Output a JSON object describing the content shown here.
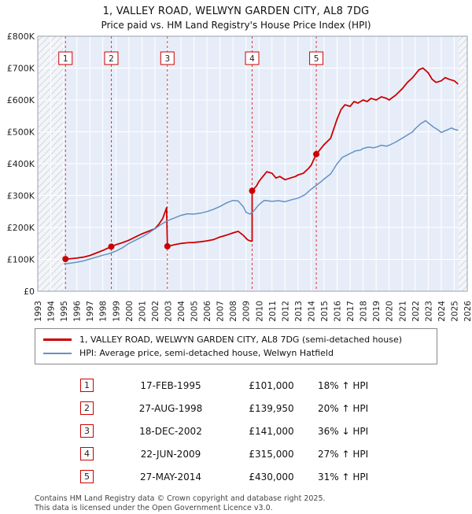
{
  "title": "1, VALLEY ROAD, WELWYN GARDEN CITY, AL8 7DG",
  "subtitle": "Price paid vs. HM Land Registry's House Price Index (HPI)",
  "chart_data": {
    "type": "line",
    "title": "Price paid vs. HM Land Registry's House Price Index (HPI)",
    "x_range": [
      1993,
      2026
    ],
    "y_range": [
      0,
      800000
    ],
    "grid": true,
    "legend_position": "below",
    "data_start": 1995.0,
    "data_end": 2025.33,
    "colors": {
      "property": "#cc0000",
      "hpi": "#6492c4",
      "band": "#e7edf8",
      "sale_line": "#dd3333",
      "hatch_line": "#c9cfda",
      "gridline": "#ffffff",
      "frame": "#98a0ac"
    },
    "x_ticks": [
      1993,
      1994,
      1995,
      1996,
      1997,
      1998,
      1999,
      2000,
      2001,
      2002,
      2003,
      2004,
      2005,
      2006,
      2007,
      2008,
      2009,
      2010,
      2011,
      2012,
      2013,
      2014,
      2015,
      2016,
      2017,
      2018,
      2019,
      2020,
      2021,
      2022,
      2023,
      2024,
      2025,
      2026
    ],
    "y_ticks": [
      {
        "value": 0,
        "label": "£0"
      },
      {
        "value": 100000,
        "label": "£100K"
      },
      {
        "value": 200000,
        "label": "£200K"
      },
      {
        "value": 300000,
        "label": "£300K"
      },
      {
        "value": 400000,
        "label": "£400K"
      },
      {
        "value": 500000,
        "label": "£500K"
      },
      {
        "value": 600000,
        "label": "£600K"
      },
      {
        "value": 700000,
        "label": "£700K"
      },
      {
        "value": 800000,
        "label": "£800K"
      }
    ],
    "sales": [
      {
        "n": "1",
        "x": 1995.13,
        "y": 101000
      },
      {
        "n": "2",
        "x": 1998.65,
        "y": 139950
      },
      {
        "n": "3",
        "x": 2002.96,
        "y": 141000
      },
      {
        "n": "4",
        "x": 2009.47,
        "y": 315000
      },
      {
        "n": "5",
        "x": 2014.4,
        "y": 430000
      }
    ],
    "series": [
      {
        "name": "1, VALLEY ROAD, WELWYN GARDEN CITY, AL8 7DG (semi-detached house)",
        "color": "#cc0000",
        "width": 1.8,
        "points": [
          [
            1995.13,
            101000
          ],
          [
            1995.5,
            102000
          ],
          [
            1996,
            104000
          ],
          [
            1996.5,
            107000
          ],
          [
            1997,
            112000
          ],
          [
            1997.5,
            120000
          ],
          [
            1998,
            128000
          ],
          [
            1998.65,
            139950
          ],
          [
            1999,
            146000
          ],
          [
            1999.5,
            152000
          ],
          [
            2000,
            160000
          ],
          [
            2000.5,
            170000
          ],
          [
            2001,
            180000
          ],
          [
            2001.5,
            188000
          ],
          [
            2002,
            196000
          ],
          [
            2002.3,
            210000
          ],
          [
            2002.6,
            228000
          ],
          [
            2002.9,
            262000
          ],
          [
            2002.96,
            141000
          ],
          [
            2003.2,
            143000
          ],
          [
            2003.5,
            146000
          ],
          [
            2004,
            150000
          ],
          [
            2004.5,
            152000
          ],
          [
            2005,
            153000
          ],
          [
            2005.5,
            155000
          ],
          [
            2006,
            158000
          ],
          [
            2006.5,
            162000
          ],
          [
            2007,
            170000
          ],
          [
            2007.5,
            176000
          ],
          [
            2008,
            183000
          ],
          [
            2008.4,
            188000
          ],
          [
            2008.8,
            175000
          ],
          [
            2009.1,
            162000
          ],
          [
            2009.3,
            158000
          ],
          [
            2009.47,
            157000
          ],
          [
            2009.47,
            315000
          ],
          [
            2009.8,
            330000
          ],
          [
            2010,
            345000
          ],
          [
            2010.3,
            360000
          ],
          [
            2010.6,
            375000
          ],
          [
            2011,
            370000
          ],
          [
            2011.3,
            355000
          ],
          [
            2011.6,
            360000
          ],
          [
            2012,
            350000
          ],
          [
            2012.4,
            355000
          ],
          [
            2012.8,
            360000
          ],
          [
            2013,
            365000
          ],
          [
            2013.4,
            370000
          ],
          [
            2013.8,
            385000
          ],
          [
            2014,
            395000
          ],
          [
            2014.4,
            430000
          ],
          [
            2014.8,
            450000
          ],
          [
            2015,
            460000
          ],
          [
            2015.5,
            480000
          ],
          [
            2016,
            540000
          ],
          [
            2016.3,
            570000
          ],
          [
            2016.6,
            585000
          ],
          [
            2017,
            580000
          ],
          [
            2017.3,
            595000
          ],
          [
            2017.6,
            590000
          ],
          [
            2018,
            600000
          ],
          [
            2018.3,
            595000
          ],
          [
            2018.6,
            605000
          ],
          [
            2019,
            600000
          ],
          [
            2019.4,
            610000
          ],
          [
            2019.8,
            605000
          ],
          [
            2020,
            600000
          ],
          [
            2020.5,
            615000
          ],
          [
            2021,
            635000
          ],
          [
            2021.4,
            655000
          ],
          [
            2021.8,
            670000
          ],
          [
            2022,
            680000
          ],
          [
            2022.3,
            695000
          ],
          [
            2022.6,
            700000
          ],
          [
            2023,
            685000
          ],
          [
            2023.3,
            665000
          ],
          [
            2023.6,
            655000
          ],
          [
            2024,
            660000
          ],
          [
            2024.3,
            670000
          ],
          [
            2024.6,
            665000
          ],
          [
            2025,
            660000
          ],
          [
            2025.3,
            650000
          ]
        ]
      },
      {
        "name": "HPI: Average price, semi-detached house, Welwyn Hatfield",
        "color": "#6492c4",
        "width": 1.5,
        "points": [
          [
            1995,
            86000
          ],
          [
            1995.5,
            88000
          ],
          [
            1996,
            91000
          ],
          [
            1996.5,
            95000
          ],
          [
            1997,
            101000
          ],
          [
            1997.5,
            107000
          ],
          [
            1998,
            113000
          ],
          [
            1998.5,
            118000
          ],
          [
            1999,
            126000
          ],
          [
            1999.5,
            136000
          ],
          [
            2000,
            150000
          ],
          [
            2000.5,
            160000
          ],
          [
            2001,
            170000
          ],
          [
            2001.5,
            182000
          ],
          [
            2002,
            196000
          ],
          [
            2002.5,
            210000
          ],
          [
            2003,
            222000
          ],
          [
            2003.5,
            230000
          ],
          [
            2004,
            238000
          ],
          [
            2004.5,
            243000
          ],
          [
            2005,
            242000
          ],
          [
            2005.5,
            245000
          ],
          [
            2006,
            250000
          ],
          [
            2006.5,
            257000
          ],
          [
            2007,
            266000
          ],
          [
            2007.5,
            277000
          ],
          [
            2008,
            285000
          ],
          [
            2008.4,
            283000
          ],
          [
            2008.8,
            265000
          ],
          [
            2009,
            248000
          ],
          [
            2009.3,
            242000
          ],
          [
            2009.6,
            252000
          ],
          [
            2010,
            272000
          ],
          [
            2010.4,
            285000
          ],
          [
            2010.8,
            283000
          ],
          [
            2011,
            282000
          ],
          [
            2011.5,
            284000
          ],
          [
            2012,
            281000
          ],
          [
            2012.5,
            287000
          ],
          [
            2013,
            292000
          ],
          [
            2013.5,
            302000
          ],
          [
            2014,
            320000
          ],
          [
            2014.4,
            332000
          ],
          [
            2014.8,
            345000
          ],
          [
            2015,
            352000
          ],
          [
            2015.5,
            368000
          ],
          [
            2016,
            400000
          ],
          [
            2016.4,
            420000
          ],
          [
            2016.8,
            428000
          ],
          [
            2017,
            432000
          ],
          [
            2017.4,
            440000
          ],
          [
            2017.8,
            443000
          ],
          [
            2018,
            448000
          ],
          [
            2018.4,
            452000
          ],
          [
            2018.8,
            450000
          ],
          [
            2019,
            452000
          ],
          [
            2019.4,
            458000
          ],
          [
            2019.8,
            455000
          ],
          [
            2020,
            458000
          ],
          [
            2020.5,
            468000
          ],
          [
            2021,
            480000
          ],
          [
            2021.4,
            490000
          ],
          [
            2021.8,
            500000
          ],
          [
            2022,
            510000
          ],
          [
            2022.4,
            525000
          ],
          [
            2022.8,
            535000
          ],
          [
            2023,
            528000
          ],
          [
            2023.4,
            515000
          ],
          [
            2023.8,
            505000
          ],
          [
            2024,
            498000
          ],
          [
            2024.4,
            505000
          ],
          [
            2024.8,
            512000
          ],
          [
            2025,
            508000
          ],
          [
            2025.3,
            505000
          ]
        ]
      }
    ]
  },
  "legend": [
    {
      "label": "1, VALLEY ROAD, WELWYN GARDEN CITY, AL8 7DG (semi-detached house)",
      "color": "#cc0000",
      "thickness": 3
    },
    {
      "label": "HPI: Average price, semi-detached house, Welwyn Hatfield",
      "color": "#6492c4",
      "thickness": 2
    }
  ],
  "transactions": [
    {
      "num": "1",
      "date": "17-FEB-1995",
      "price": "£101,000",
      "hpi": "18% ↑ HPI"
    },
    {
      "num": "2",
      "date": "27-AUG-1998",
      "price": "£139,950",
      "hpi": "20% ↑ HPI"
    },
    {
      "num": "3",
      "date": "18-DEC-2002",
      "price": "£141,000",
      "hpi": "36% ↓ HPI"
    },
    {
      "num": "4",
      "date": "22-JUN-2009",
      "price": "£315,000",
      "hpi": "27% ↑ HPI"
    },
    {
      "num": "5",
      "date": "27-MAY-2014",
      "price": "£430,000",
      "hpi": "31% ↑ HPI"
    }
  ],
  "footer": {
    "line1": "Contains HM Land Registry data © Crown copyright and database right 2025.",
    "line2": "This data is licensed under the Open Government Licence v3.0."
  }
}
